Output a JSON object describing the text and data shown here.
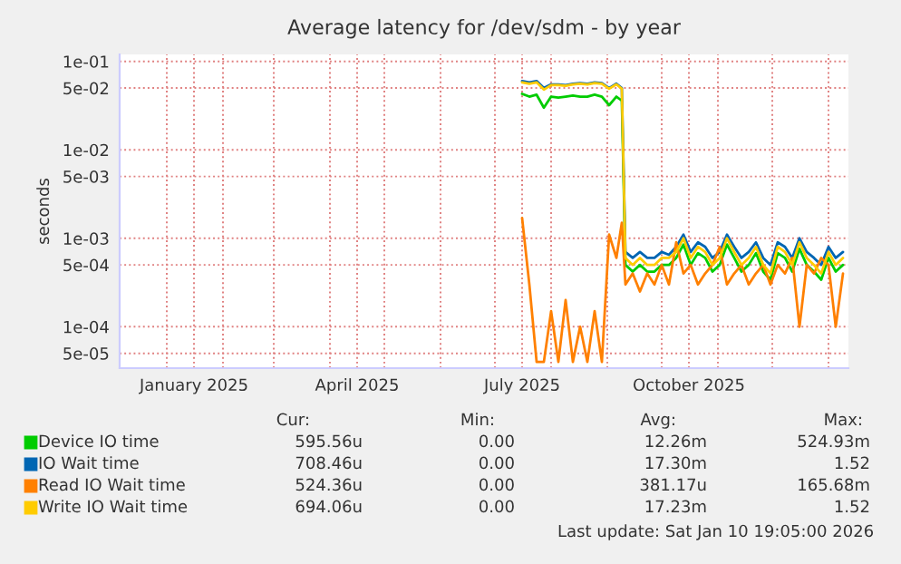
{
  "chart_data": {
    "type": "line",
    "title": "Average latency for /dev/sdm - by year",
    "ylabel": "seconds",
    "x": [
      "2025-07-16",
      "2025-07-20",
      "2025-07-24",
      "2025-07-28",
      "2025-08-01",
      "2025-08-05",
      "2025-08-09",
      "2025-08-13",
      "2025-08-17",
      "2025-08-21",
      "2025-08-25",
      "2025-08-29",
      "2025-09-02",
      "2025-09-06",
      "2025-09-09",
      "2025-09-11",
      "2025-09-15",
      "2025-09-19",
      "2025-09-23",
      "2025-09-27",
      "2025-10-01",
      "2025-10-05",
      "2025-10-09",
      "2025-10-13",
      "2025-10-17",
      "2025-10-21",
      "2025-10-25",
      "2025-10-29",
      "2025-11-02",
      "2025-11-06",
      "2025-11-10",
      "2025-11-14",
      "2025-11-18",
      "2025-11-22",
      "2025-11-26",
      "2025-11-30",
      "2025-12-04",
      "2025-12-08",
      "2025-12-12",
      "2025-12-16",
      "2025-12-20",
      "2025-12-24",
      "2025-12-28",
      "2026-01-01",
      "2026-01-05",
      "2026-01-09"
    ],
    "series": [
      {
        "name": "Device IO time",
        "color": "#00cc00",
        "values": [
          0.043,
          0.04,
          0.042,
          0.03,
          0.04,
          0.039,
          0.04,
          0.041,
          0.04,
          0.04,
          0.042,
          0.04,
          0.032,
          0.04,
          0.036,
          0.0005,
          0.00042,
          0.0005,
          0.00042,
          0.00042,
          0.0005,
          0.0005,
          0.0006,
          0.00085,
          0.0005,
          0.00068,
          0.0006,
          0.00042,
          0.0005,
          0.00085,
          0.0006,
          0.00042,
          0.0005,
          0.00068,
          0.00042,
          0.00034,
          0.00068,
          0.0006,
          0.00042,
          0.00076,
          0.0005,
          0.00042,
          0.00034,
          0.0006,
          0.00042,
          0.0005
        ]
      },
      {
        "name": "IO Wait time",
        "color": "#0066b3",
        "values": [
          0.06,
          0.058,
          0.06,
          0.05,
          0.055,
          0.055,
          0.054,
          0.056,
          0.057,
          0.056,
          0.058,
          0.057,
          0.05,
          0.056,
          0.05,
          0.0007,
          0.0006,
          0.0007,
          0.0006,
          0.0006,
          0.0007,
          0.00065,
          0.0008,
          0.0011,
          0.0007,
          0.0009,
          0.0008,
          0.0006,
          0.0007,
          0.0011,
          0.0008,
          0.0006,
          0.0007,
          0.0009,
          0.0006,
          0.0005,
          0.0009,
          0.0008,
          0.0006,
          0.001,
          0.0007,
          0.0006,
          0.0005,
          0.0008,
          0.0006,
          0.0007
        ]
      },
      {
        "name": "Read IO Wait time",
        "color": "#ff8000",
        "values": [
          0.0017,
          0.0003,
          4e-05,
          4e-05,
          0.00015,
          4e-05,
          0.0002,
          4e-05,
          0.0001,
          4e-05,
          0.00015,
          4e-05,
          0.0011,
          0.0006,
          0.0015,
          0.0003,
          0.0004,
          0.00025,
          0.0004,
          0.0003,
          0.0005,
          0.0003,
          0.0009,
          0.0004,
          0.0005,
          0.0003,
          0.0004,
          0.0005,
          0.0008,
          0.0003,
          0.0004,
          0.0005,
          0.0003,
          0.0004,
          0.0005,
          0.0003,
          0.0005,
          0.0004,
          0.0006,
          0.0001,
          0.0005,
          0.0004,
          0.0006,
          0.0005,
          0.0001,
          0.0004
        ]
      },
      {
        "name": "Write IO Wait time",
        "color": "#ffcc00",
        "values": [
          0.058,
          0.056,
          0.058,
          0.048,
          0.054,
          0.054,
          0.053,
          0.055,
          0.056,
          0.055,
          0.057,
          0.056,
          0.049,
          0.055,
          0.049,
          0.0006,
          0.0005,
          0.0006,
          0.0005,
          0.0005,
          0.0006,
          0.0006,
          0.0007,
          0.001,
          0.0006,
          0.0008,
          0.0007,
          0.0005,
          0.0006,
          0.001,
          0.0007,
          0.0005,
          0.0006,
          0.0008,
          0.0005,
          0.0004,
          0.0008,
          0.0007,
          0.0005,
          0.0009,
          0.0006,
          0.0005,
          0.0004,
          0.0007,
          0.0005,
          0.0006
        ]
      }
    ],
    "log": "y",
    "ylim": [
      3.4e-05,
      0.12
    ],
    "yticks": [
      {
        "value": 0.1,
        "label": "1e-01"
      },
      {
        "value": 0.05,
        "label": "5e-02"
      },
      {
        "value": 0.01,
        "label": "1e-02"
      },
      {
        "value": 0.005,
        "label": "5e-03"
      },
      {
        "value": 0.001,
        "label": "1e-03"
      },
      {
        "value": 0.0005,
        "label": "5e-04"
      },
      {
        "value": 0.0001,
        "label": "1e-04"
      },
      {
        "value": 5e-05,
        "label": "5e-05"
      }
    ],
    "xlim": [
      "2024-12-06",
      "2026-01-12"
    ],
    "xticks": [
      {
        "value": "2025-01-16",
        "label": "January 2025"
      },
      {
        "value": "2025-04-16",
        "label": "April 2025"
      },
      {
        "value": "2025-07-16",
        "label": "July 2025"
      },
      {
        "value": "2025-10-16",
        "label": "October 2025"
      },
      {
        "value": "2025-01-01",
        "label": null
      },
      {
        "value": "2025-02-01",
        "label": null
      },
      {
        "value": "2025-03-01",
        "label": null
      },
      {
        "value": "2025-04-01",
        "label": null
      },
      {
        "value": "2025-05-01",
        "label": null
      },
      {
        "value": "2025-06-01",
        "label": null
      },
      {
        "value": "2025-07-01",
        "label": null
      },
      {
        "value": "2025-08-01",
        "label": null
      },
      {
        "value": "2025-09-01",
        "label": null
      },
      {
        "value": "2025-10-01",
        "label": null
      },
      {
        "value": "2025-11-01",
        "label": null
      },
      {
        "value": "2025-12-01",
        "label": null
      },
      {
        "value": "2026-01-01",
        "label": null
      }
    ],
    "grid": true,
    "legend": "bottom left",
    "annotations": [
      "Cur:",
      "Min:",
      "Avg:",
      "Max:",
      "595.56u",
      "0.00",
      "12.26m",
      "524.93m",
      "708.46u",
      "0.00",
      "17.30m",
      "1.52",
      "524.36u",
      "0.00",
      "381.17u",
      "165.68m",
      "694.06u",
      "0.00",
      "17.23m",
      "1.52",
      "Last update: Sat Jan 10 19:05:00 2026"
    ]
  }
}
